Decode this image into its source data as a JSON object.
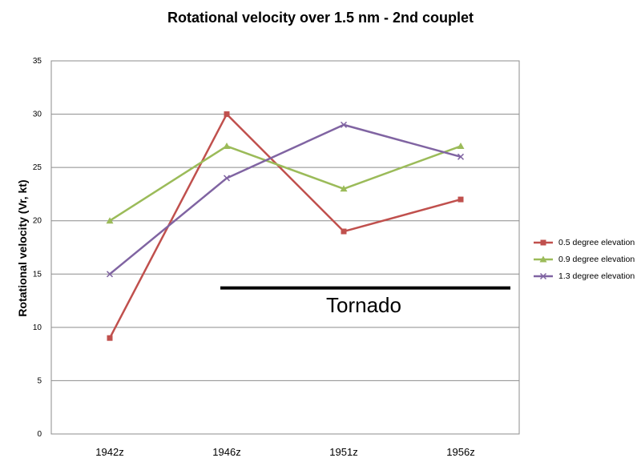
{
  "chart_data": {
    "type": "line",
    "title": "Rotational velocity over 1.5 nm - 2nd couplet",
    "xlabel": "",
    "ylabel": "Rotational velocity (Vr, kt)",
    "categories": [
      "1942z",
      "1946z",
      "1951z",
      "1956z"
    ],
    "ylim": [
      0,
      35
    ],
    "yticks": [
      0,
      5,
      10,
      15,
      20,
      25,
      30,
      35
    ],
    "grid": true,
    "legend_position": "right",
    "series": [
      {
        "name": "0.5 degree elevation",
        "values": [
          9,
          30,
          19,
          22
        ],
        "color": "#c0504d",
        "marker": "square"
      },
      {
        "name": "0.9 degree elevation",
        "values": [
          20,
          27,
          23,
          27
        ],
        "color": "#9bbb59",
        "marker": "triangle"
      },
      {
        "name": "1.3 degree elevation",
        "values": [
          15,
          24,
          29,
          26
        ],
        "color": "#8064a2",
        "marker": "x"
      }
    ],
    "annotations": [
      {
        "text": "Tornado",
        "value": 13.7,
        "from_category": "1946z",
        "to_category": "1956z"
      }
    ]
  }
}
